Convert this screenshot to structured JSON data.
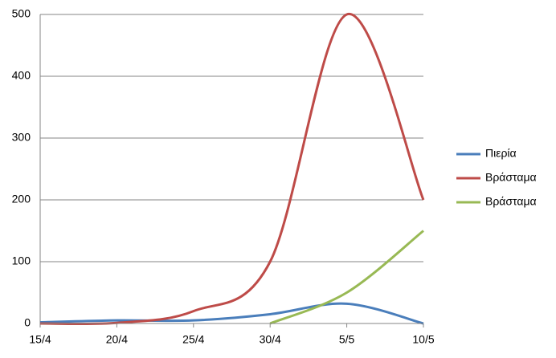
{
  "chart_data": {
    "type": "line",
    "categories": [
      "15/4",
      "20/4",
      "25/4",
      "30/4",
      "5/5",
      "10/5"
    ],
    "series": [
      {
        "name": "Πιερία",
        "color": "#4a7ebb",
        "values": [
          2,
          5,
          5,
          15,
          32,
          0
        ]
      },
      {
        "name": "Βράσταμα",
        "color": "#be4b48",
        "values": [
          0,
          1,
          20,
          100,
          500,
          200
        ]
      },
      {
        "name": "Βράσταμα",
        "color": "#98b954",
        "values": [
          null,
          null,
          null,
          0,
          50,
          150
        ]
      }
    ],
    "ylim": [
      0,
      500
    ],
    "yticks": [
      0,
      100,
      200,
      300,
      400,
      500
    ],
    "grid": true,
    "legend": "right",
    "smooth": true
  }
}
